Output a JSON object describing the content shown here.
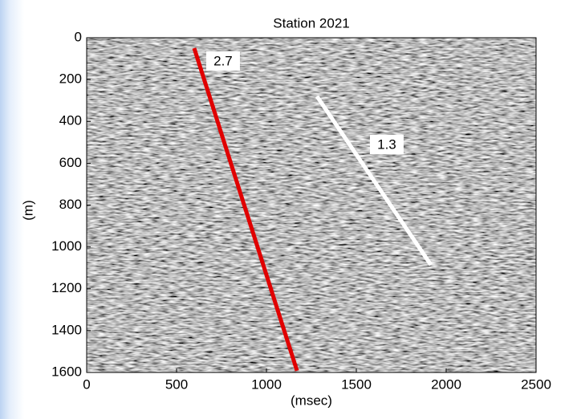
{
  "chart_data": {
    "type": "seismic-image",
    "title": "Station 2021",
    "xlabel": "(msec)",
    "ylabel": "(m)",
    "xlim": [
      0,
      2500
    ],
    "xticks": [
      0,
      500,
      1000,
      1500,
      2000,
      2500
    ],
    "ylim": [
      1600,
      0
    ],
    "yticks": [
      0,
      200,
      400,
      600,
      800,
      1000,
      1200,
      1400,
      1600
    ],
    "lines": [
      {
        "label": "2.7",
        "color": "#e00000",
        "x": [
          598,
          1170
        ],
        "y": [
          50,
          1592
        ]
      },
      {
        "label": "1.3",
        "color": "#ffffff",
        "x": [
          1281,
          1915
        ],
        "y": [
          280,
          1086
        ]
      }
    ]
  }
}
